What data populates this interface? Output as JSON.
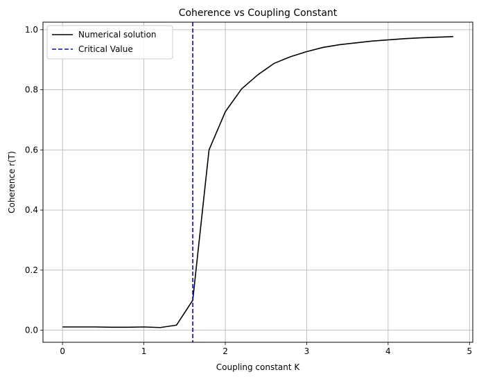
{
  "chart_data": {
    "type": "line",
    "title": "Coherence vs Coupling Constant",
    "xlabel": "Coupling constant K",
    "ylabel": "Coherence r(T)",
    "xlim": [
      -0.24,
      5.04
    ],
    "ylim": [
      -0.04,
      1.025
    ],
    "xticks": [
      0,
      1,
      2,
      3,
      4,
      5
    ],
    "xtick_labels": [
      "0",
      "1",
      "2",
      "3",
      "4",
      "5"
    ],
    "yticks": [
      0.0,
      0.2,
      0.4,
      0.6,
      0.8,
      1.0
    ],
    "ytick_labels": [
      "0.0",
      "0.2",
      "0.4",
      "0.6",
      "0.8",
      "1.0"
    ],
    "grid": true,
    "legend_position": "top-left",
    "series": [
      {
        "name": "Numerical solution",
        "color": "#000000",
        "style": "solid",
        "x": [
          0.0,
          0.2,
          0.4,
          0.6,
          0.8,
          1.0,
          1.2,
          1.4,
          1.6,
          1.8,
          2.0,
          2.2,
          2.4,
          2.6,
          2.8,
          3.0,
          3.2,
          3.4,
          3.6,
          3.8,
          4.0,
          4.2,
          4.4,
          4.6,
          4.8
        ],
        "y": [
          0.011,
          0.011,
          0.011,
          0.01,
          0.01,
          0.011,
          0.009,
          0.017,
          0.1,
          0.6,
          0.727,
          0.803,
          0.85,
          0.888,
          0.91,
          0.927,
          0.941,
          0.95,
          0.956,
          0.962,
          0.966,
          0.97,
          0.973,
          0.975,
          0.977
        ]
      },
      {
        "name": "Critical Value",
        "color": "#0000ff",
        "style": "dashed",
        "type": "vline",
        "x": 1.6
      }
    ]
  }
}
